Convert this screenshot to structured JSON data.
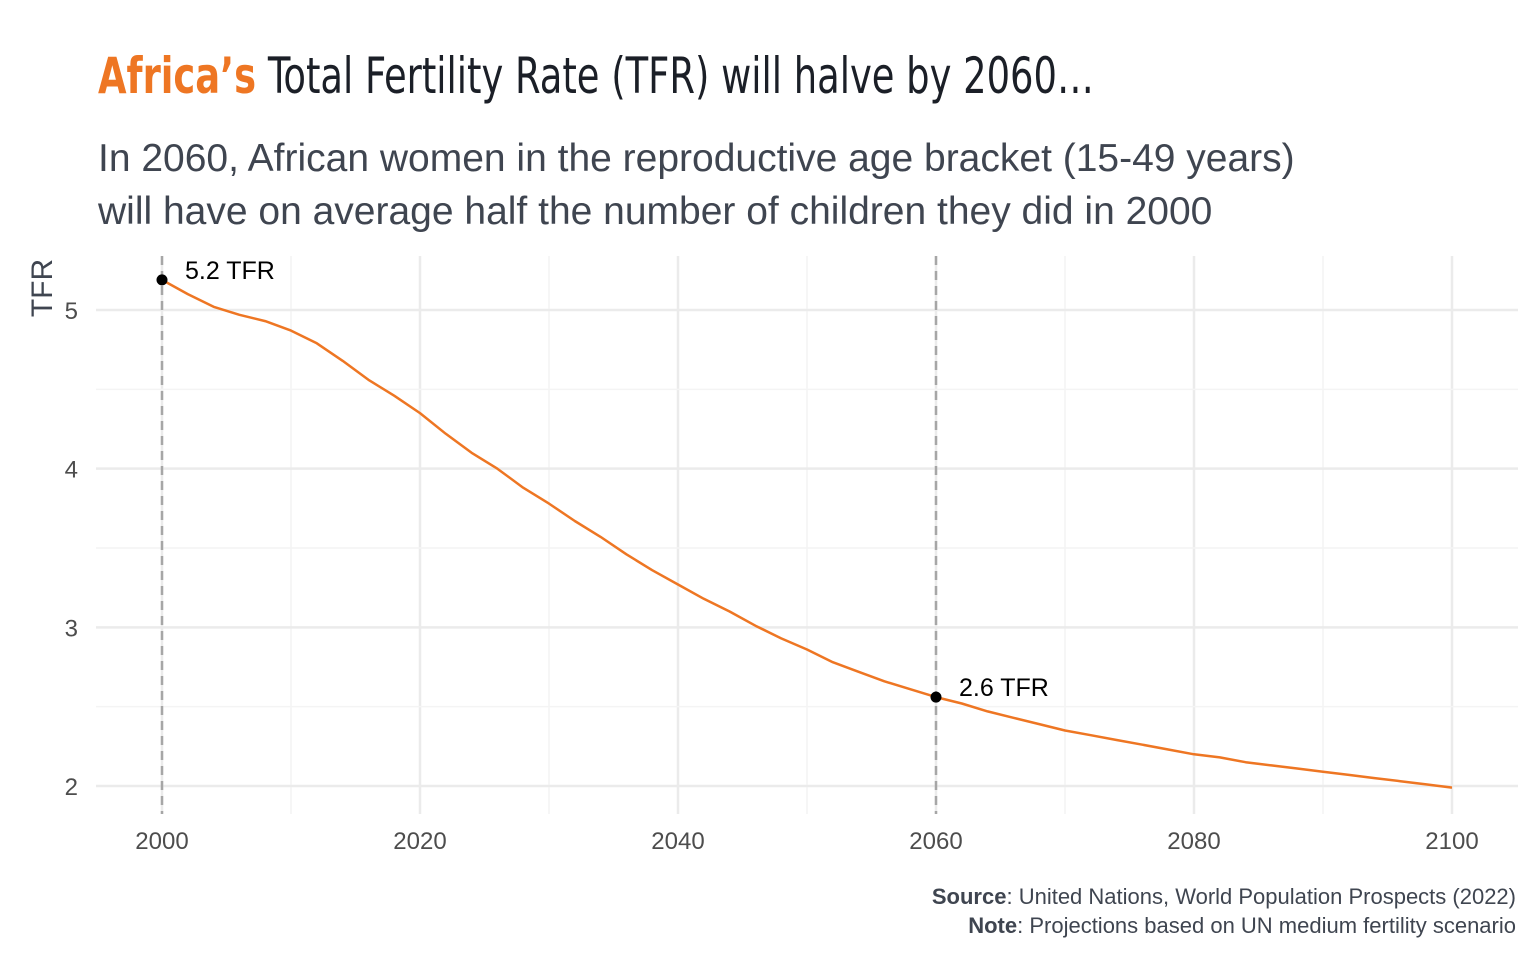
{
  "title": {
    "accent": "Africa’s",
    "rest": " Total Fertility Rate (TFR) will halve by 2060…"
  },
  "subtitle": {
    "line1": "In 2060, African women in the reproductive age bracket (15-49 years)",
    "line2": "will have on average half the number of children they did in 2000"
  },
  "footer": {
    "source_label": "Source",
    "source_text": ": United Nations, World Population Prospects (2022)",
    "note_label": "Note",
    "note_text": ": Projections based on UN medium fertility scenario"
  },
  "colors": {
    "line": "#ee7623",
    "accent": "#ee7623",
    "grid": "#ebebeb",
    "vline": "#a6a6a6",
    "point": "#000000"
  },
  "chart_data": {
    "type": "line",
    "title": "",
    "xlabel": "",
    "ylabel": "TFR",
    "xlim": [
      2000,
      2100
    ],
    "ylim": [
      2,
      5
    ],
    "x_ticks": [
      "2000",
      "2020",
      "2040",
      "2060",
      "2080",
      "2100"
    ],
    "y_ticks": [
      "2",
      "3",
      "4",
      "5"
    ],
    "grid": true,
    "x": [
      2000,
      2002,
      2004,
      2006,
      2008,
      2010,
      2012,
      2014,
      2016,
      2018,
      2020,
      2022,
      2024,
      2026,
      2028,
      2030,
      2032,
      2034,
      2036,
      2038,
      2040,
      2042,
      2044,
      2046,
      2048,
      2050,
      2052,
      2054,
      2056,
      2058,
      2060,
      2062,
      2064,
      2066,
      2068,
      2070,
      2072,
      2074,
      2076,
      2078,
      2080,
      2082,
      2084,
      2086,
      2088,
      2090,
      2092,
      2094,
      2096,
      2098,
      2100
    ],
    "series": [
      {
        "values": [
          5.19,
          5.1,
          5.02,
          4.97,
          4.93,
          4.87,
          4.79,
          4.68,
          4.56,
          4.46,
          4.35,
          4.22,
          4.1,
          4.0,
          3.88,
          3.78,
          3.67,
          3.57,
          3.46,
          3.36,
          3.27,
          3.18,
          3.1,
          3.01,
          2.93,
          2.86,
          2.78,
          2.72,
          2.66,
          2.61,
          2.56,
          2.52,
          2.47,
          2.43,
          2.39,
          2.35,
          2.32,
          2.29,
          2.26,
          2.23,
          2.2,
          2.18,
          2.15,
          2.13,
          2.11,
          2.09,
          2.07,
          2.05,
          2.03,
          2.01,
          1.99
        ]
      }
    ],
    "reference_lines": [
      2000,
      2060
    ],
    "annotations": [
      {
        "x": 2000,
        "y": 5.19,
        "label": "5.2  TFR"
      },
      {
        "x": 2060,
        "y": 2.56,
        "label": "2.6  TFR"
      }
    ]
  }
}
